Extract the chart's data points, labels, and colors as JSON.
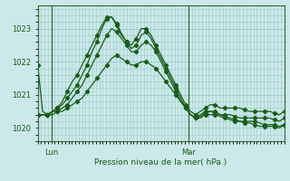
{
  "background_color": "#cce8e8",
  "grid_color": "#99cccc",
  "line_color": "#1a5c1a",
  "marker_color": "#1a5c1a",
  "xlabel": "Pression niveau de la mer( hPa )",
  "ylim": [
    1019.6,
    1023.7
  ],
  "yticks": [
    1020,
    1021,
    1022,
    1023
  ],
  "xlim": [
    0,
    72
  ],
  "xtick_positions": [
    4,
    44
  ],
  "xtick_labels": [
    "Lun",
    "Mar"
  ],
  "vline_x": [
    4,
    44
  ],
  "series": [
    [
      1021.9,
      1020.5,
      1020.4,
      1020.5,
      1020.6,
      1020.8,
      1021.1,
      1021.4,
      1021.6,
      1021.9,
      1022.2,
      1022.5,
      1022.8,
      1023.1,
      1023.35,
      1023.35,
      1023.1,
      1022.8,
      1022.6,
      1022.5,
      1022.7,
      1023.0,
      1023.0,
      1022.8,
      1022.5,
      1022.2,
      1021.9,
      1021.6,
      1021.3,
      1021.0,
      1020.7,
      1020.5,
      1020.4,
      1020.5,
      1020.6,
      1020.7,
      1020.7,
      1020.6,
      1020.6,
      1020.6,
      1020.6,
      1020.6,
      1020.55,
      1020.5,
      1020.5,
      1020.5,
      1020.5,
      1020.5,
      1020.45,
      1020.4,
      1020.5
    ],
    [
      1020.4,
      1020.4,
      1020.4,
      1020.5,
      1020.6,
      1020.7,
      1020.9,
      1021.1,
      1021.3,
      1021.6,
      1021.9,
      1022.3,
      1022.6,
      1023.0,
      1023.3,
      1023.35,
      1023.15,
      1022.85,
      1022.6,
      1022.4,
      1022.5,
      1022.8,
      1022.9,
      1022.7,
      1022.4,
      1022.1,
      1021.8,
      1021.5,
      1021.2,
      1020.9,
      1020.6,
      1020.4,
      1020.3,
      1020.4,
      1020.5,
      1020.5,
      1020.5,
      1020.4,
      1020.4,
      1020.4,
      1020.35,
      1020.3,
      1020.3,
      1020.3,
      1020.3,
      1020.3,
      1020.3,
      1020.3,
      1020.25,
      1020.2,
      1020.3
    ],
    [
      1020.4,
      1020.4,
      1020.4,
      1020.5,
      1020.5,
      1020.6,
      1020.7,
      1020.9,
      1021.1,
      1021.3,
      1021.6,
      1021.9,
      1022.2,
      1022.5,
      1022.8,
      1023.0,
      1022.9,
      1022.7,
      1022.5,
      1022.3,
      1022.3,
      1022.5,
      1022.6,
      1022.5,
      1022.3,
      1022.0,
      1021.7,
      1021.4,
      1021.1,
      1020.8,
      1020.6,
      1020.4,
      1020.3,
      1020.35,
      1020.45,
      1020.5,
      1020.45,
      1020.4,
      1020.35,
      1020.3,
      1020.25,
      1020.2,
      1020.2,
      1020.2,
      1020.2,
      1020.15,
      1020.1,
      1020.1,
      1020.1,
      1020.05,
      1020.1
    ],
    [
      1020.4,
      1020.4,
      1020.4,
      1020.4,
      1020.5,
      1020.5,
      1020.6,
      1020.7,
      1020.8,
      1020.9,
      1021.1,
      1021.3,
      1021.5,
      1021.7,
      1021.9,
      1022.1,
      1022.2,
      1022.1,
      1022.0,
      1021.9,
      1021.9,
      1022.0,
      1022.0,
      1021.9,
      1021.8,
      1021.6,
      1021.4,
      1021.2,
      1021.0,
      1020.8,
      1020.6,
      1020.4,
      1020.3,
      1020.3,
      1020.4,
      1020.4,
      1020.4,
      1020.35,
      1020.3,
      1020.25,
      1020.2,
      1020.2,
      1020.15,
      1020.15,
      1020.1,
      1020.05,
      1020.05,
      1020.05,
      1020.05,
      1020.0,
      1020.1
    ]
  ],
  "marker_step": 2
}
